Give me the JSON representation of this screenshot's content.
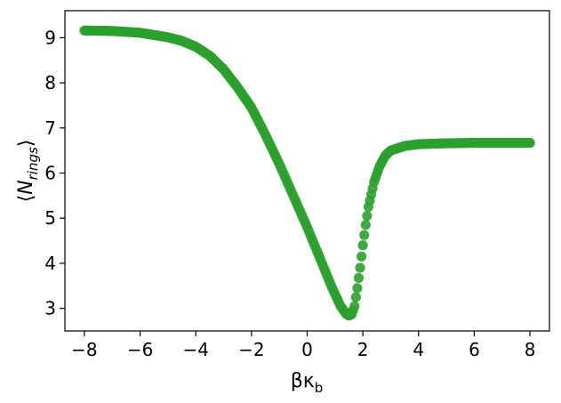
{
  "chart_data": {
    "type": "scatter",
    "title": "",
    "xlabel": "βκ_b",
    "ylabel": "⟨N_rings⟩",
    "xlim": [
      -8.7,
      8.7
    ],
    "ylim": [
      2.5,
      9.6
    ],
    "xticks": [
      -8,
      -6,
      -4,
      -2,
      0,
      2,
      4,
      6,
      8
    ],
    "yticks": [
      3,
      4,
      5,
      6,
      7,
      8,
      9
    ],
    "xtick_labels": [
      "−8",
      "−6",
      "−4",
      "−2",
      "0",
      "2",
      "4",
      "6",
      "8"
    ],
    "ytick_labels": [
      "3",
      "4",
      "5",
      "6",
      "7",
      "8",
      "9"
    ],
    "grid": false,
    "legend": "none",
    "series": [
      {
        "color": "#2ca02c",
        "points": [
          [
            -8.0,
            9.16
          ],
          [
            -7.0,
            9.15
          ],
          [
            -6.0,
            9.11
          ],
          [
            -5.0,
            9.01
          ],
          [
            -4.5,
            8.93
          ],
          [
            -4.0,
            8.8
          ],
          [
            -3.5,
            8.6
          ],
          [
            -3.0,
            8.3
          ],
          [
            -2.5,
            7.9
          ],
          [
            -2.0,
            7.45
          ],
          [
            -1.5,
            6.85
          ],
          [
            -1.0,
            6.2
          ],
          [
            -0.5,
            5.5
          ],
          [
            0.0,
            4.8
          ],
          [
            0.5,
            4.05
          ],
          [
            0.9,
            3.45
          ],
          [
            1.2,
            3.05
          ],
          [
            1.4,
            2.88
          ],
          [
            1.5,
            2.84
          ],
          [
            1.6,
            2.87
          ],
          [
            1.7,
            3.05
          ],
          [
            1.8,
            3.45
          ],
          [
            1.9,
            3.9
          ],
          [
            2.0,
            4.4
          ],
          [
            2.1,
            4.85
          ],
          [
            2.2,
            5.25
          ],
          [
            2.4,
            5.8
          ],
          [
            2.6,
            6.15
          ],
          [
            2.8,
            6.38
          ],
          [
            3.0,
            6.5
          ],
          [
            3.5,
            6.6
          ],
          [
            4.0,
            6.64
          ],
          [
            5.0,
            6.66
          ],
          [
            6.0,
            6.67
          ],
          [
            7.0,
            6.67
          ],
          [
            8.0,
            6.67
          ]
        ]
      }
    ]
  }
}
